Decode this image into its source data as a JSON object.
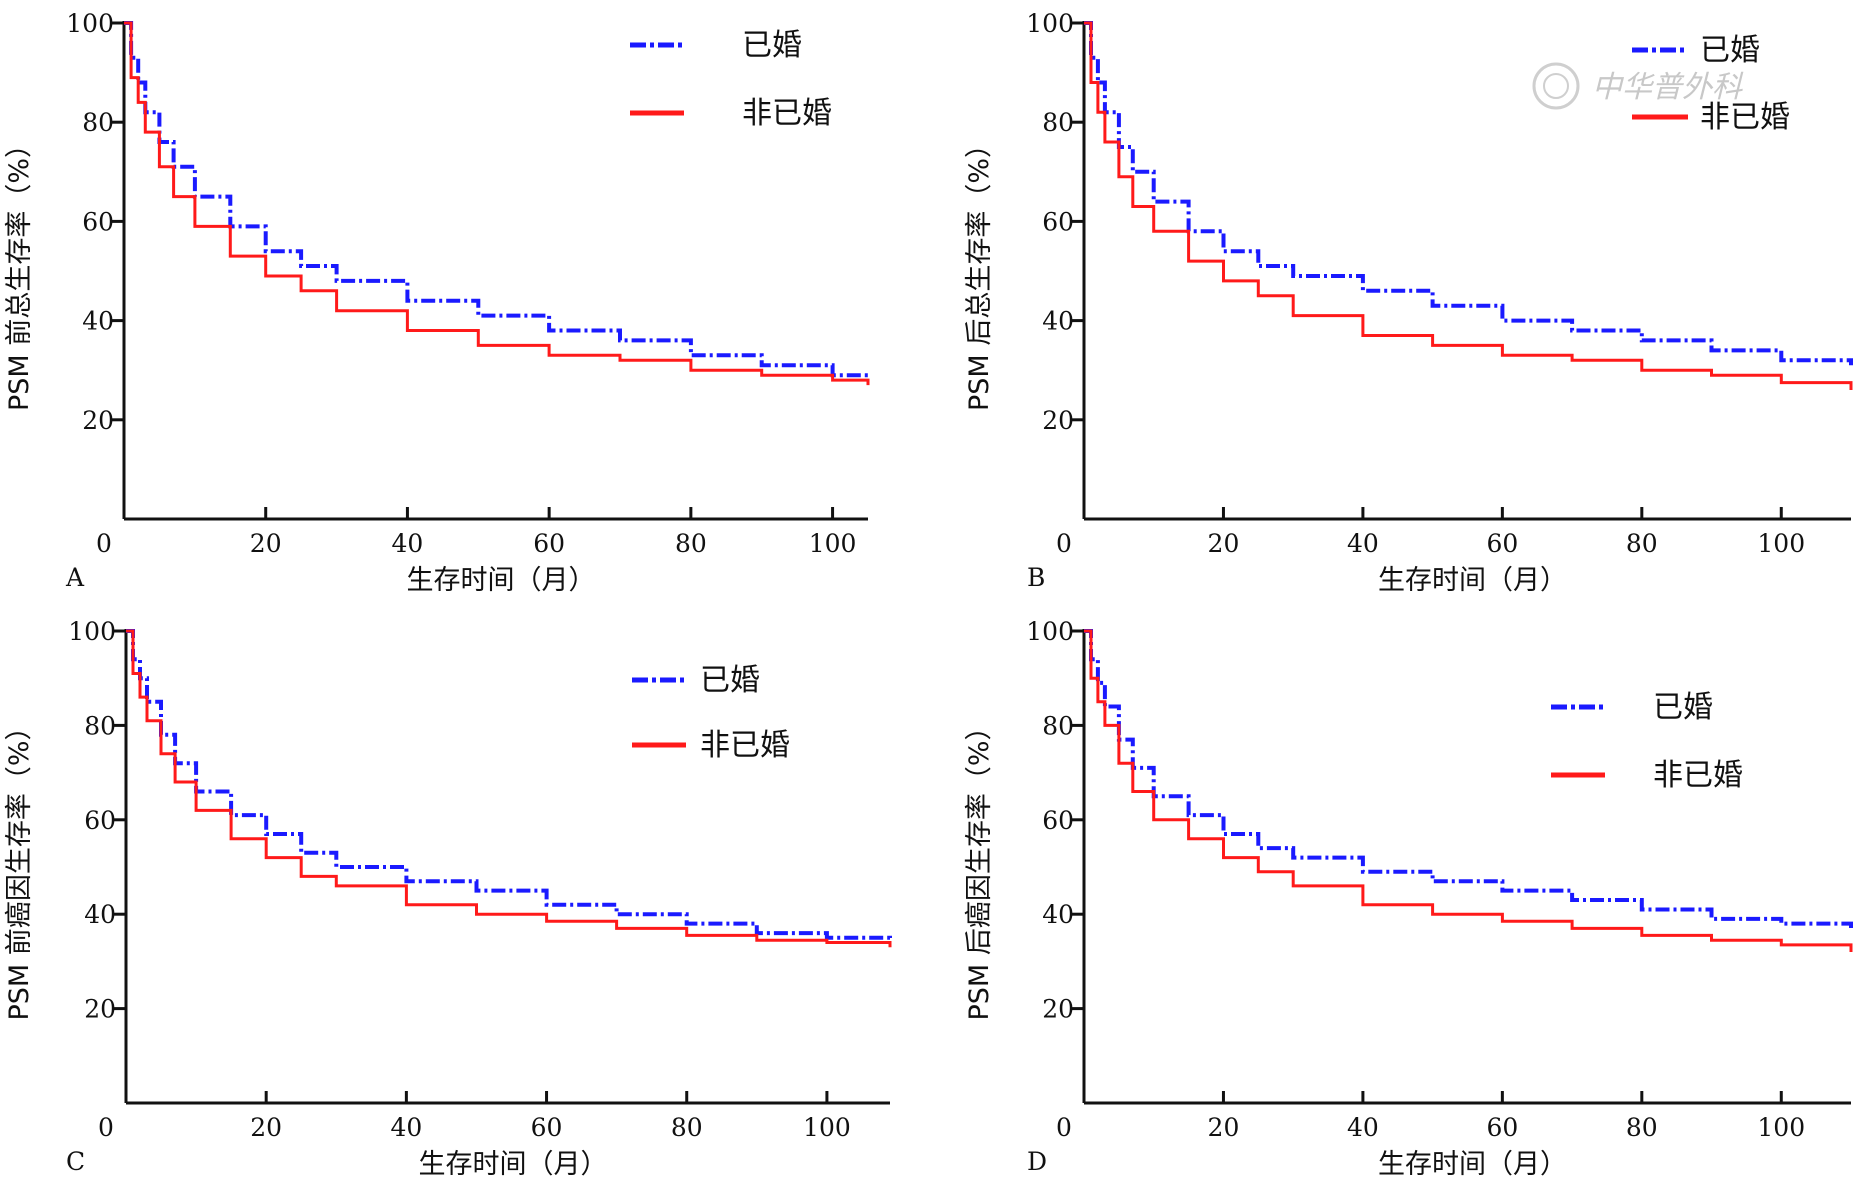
{
  "figure": {
    "watermark": "中华普外科"
  },
  "chart_data": [
    {
      "type": "line",
      "panel_label": "A",
      "xlabel": "生存时间（月）",
      "ylabel": "PSM 前总生存率（%）",
      "xlim": [
        0,
        105
      ],
      "ylim": [
        0,
        100
      ],
      "x_ticks": [
        0,
        20,
        40,
        60,
        80,
        100
      ],
      "y_ticks": [
        20,
        40,
        60,
        80,
        100
      ],
      "legend_position": "top-right",
      "series": [
        {
          "name": "已婚",
          "color": "#1a1aff",
          "style": "dash-dot",
          "points": [
            [
              0,
              100
            ],
            [
              1,
              93
            ],
            [
              2,
              88
            ],
            [
              3,
              82
            ],
            [
              5,
              76
            ],
            [
              7,
              71
            ],
            [
              10,
              65
            ],
            [
              15,
              59
            ],
            [
              20,
              54
            ],
            [
              25,
              51
            ],
            [
              30,
              48
            ],
            [
              40,
              44
            ],
            [
              50,
              41
            ],
            [
              60,
              38
            ],
            [
              70,
              36
            ],
            [
              80,
              33
            ],
            [
              90,
              31
            ],
            [
              100,
              29
            ],
            [
              105,
              28.5
            ]
          ]
        },
        {
          "name": "非已婚",
          "color": "#ff1a1a",
          "style": "solid",
          "points": [
            [
              0,
              100
            ],
            [
              1,
              89
            ],
            [
              2,
              84
            ],
            [
              3,
              78
            ],
            [
              5,
              71
            ],
            [
              7,
              65
            ],
            [
              10,
              59
            ],
            [
              15,
              53
            ],
            [
              20,
              49
            ],
            [
              25,
              46
            ],
            [
              30,
              42
            ],
            [
              40,
              38
            ],
            [
              50,
              35
            ],
            [
              60,
              33
            ],
            [
              70,
              32
            ],
            [
              80,
              30
            ],
            [
              90,
              29
            ],
            [
              100,
              28
            ],
            [
              105,
              27
            ]
          ]
        }
      ]
    },
    {
      "type": "line",
      "panel_label": "B",
      "xlabel": "生存时间（月）",
      "ylabel": "PSM 后总生存率（%）",
      "xlim": [
        0,
        110
      ],
      "ylim": [
        0,
        100
      ],
      "x_ticks": [
        0,
        20,
        40,
        60,
        80,
        100
      ],
      "y_ticks": [
        20,
        40,
        60,
        80,
        100
      ],
      "legend_position": "top-right",
      "series": [
        {
          "name": "已婚",
          "color": "#1a1aff",
          "style": "dash-dot",
          "points": [
            [
              0,
              100
            ],
            [
              1,
              93
            ],
            [
              2,
              88
            ],
            [
              3,
              82
            ],
            [
              5,
              75
            ],
            [
              7,
              70
            ],
            [
              10,
              64
            ],
            [
              15,
              58
            ],
            [
              20,
              54
            ],
            [
              25,
              51
            ],
            [
              30,
              49
            ],
            [
              40,
              46
            ],
            [
              50,
              43
            ],
            [
              60,
              40
            ],
            [
              70,
              38
            ],
            [
              80,
              36
            ],
            [
              90,
              34
            ],
            [
              100,
              32
            ],
            [
              110,
              31
            ]
          ]
        },
        {
          "name": "非已婚",
          "color": "#ff1a1a",
          "style": "solid",
          "points": [
            [
              0,
              100
            ],
            [
              1,
              88
            ],
            [
              2,
              82
            ],
            [
              3,
              76
            ],
            [
              5,
              69
            ],
            [
              7,
              63
            ],
            [
              10,
              58
            ],
            [
              15,
              52
            ],
            [
              20,
              48
            ],
            [
              25,
              45
            ],
            [
              30,
              41
            ],
            [
              40,
              37
            ],
            [
              50,
              35
            ],
            [
              60,
              33
            ],
            [
              70,
              32
            ],
            [
              80,
              30
            ],
            [
              90,
              29
            ],
            [
              100,
              27.5
            ],
            [
              110,
              26
            ]
          ]
        }
      ]
    },
    {
      "type": "line",
      "panel_label": "C",
      "xlabel": "生存时间（月）",
      "ylabel": "PSM 前癌因生存率（%）",
      "xlim": [
        0,
        109
      ],
      "ylim": [
        0,
        100
      ],
      "x_ticks": [
        0,
        20,
        40,
        60,
        80,
        100
      ],
      "y_ticks": [
        20,
        40,
        60,
        80,
        100
      ],
      "legend_position": "top-right",
      "series": [
        {
          "name": "已婚",
          "color": "#1a1aff",
          "style": "dash-dot",
          "points": [
            [
              0,
              100
            ],
            [
              1,
              94
            ],
            [
              2,
              90
            ],
            [
              3,
              85
            ],
            [
              5,
              78
            ],
            [
              7,
              72
            ],
            [
              10,
              66
            ],
            [
              15,
              61
            ],
            [
              20,
              57
            ],
            [
              25,
              53
            ],
            [
              30,
              50
            ],
            [
              40,
              47
            ],
            [
              50,
              45
            ],
            [
              60,
              42
            ],
            [
              70,
              40
            ],
            [
              80,
              38
            ],
            [
              90,
              36
            ],
            [
              100,
              35
            ],
            [
              109,
              34.5
            ]
          ]
        },
        {
          "name": "非已婚",
          "color": "#ff1a1a",
          "style": "solid",
          "points": [
            [
              0,
              100
            ],
            [
              1,
              91
            ],
            [
              2,
              86
            ],
            [
              3,
              81
            ],
            [
              5,
              74
            ],
            [
              7,
              68
            ],
            [
              10,
              62
            ],
            [
              15,
              56
            ],
            [
              20,
              52
            ],
            [
              25,
              48
            ],
            [
              30,
              46
            ],
            [
              40,
              42
            ],
            [
              50,
              40
            ],
            [
              60,
              38.5
            ],
            [
              70,
              37
            ],
            [
              80,
              35.5
            ],
            [
              90,
              34.5
            ],
            [
              100,
              34
            ],
            [
              109,
              33
            ]
          ]
        }
      ]
    },
    {
      "type": "line",
      "panel_label": "D",
      "xlabel": "生存时间（月）",
      "ylabel": "PSM 后癌因生存率（%）",
      "xlim": [
        0,
        110
      ],
      "ylim": [
        0,
        100
      ],
      "x_ticks": [
        0,
        20,
        40,
        60,
        80,
        100
      ],
      "y_ticks": [
        20,
        40,
        60,
        80,
        100
      ],
      "legend_position": "top-right",
      "series": [
        {
          "name": "已婚",
          "color": "#1a1aff",
          "style": "dash-dot",
          "points": [
            [
              0,
              100
            ],
            [
              1,
              94
            ],
            [
              2,
              89
            ],
            [
              3,
              84
            ],
            [
              5,
              77
            ],
            [
              7,
              71
            ],
            [
              10,
              65
            ],
            [
              15,
              61
            ],
            [
              20,
              57
            ],
            [
              25,
              54
            ],
            [
              30,
              52
            ],
            [
              40,
              49
            ],
            [
              50,
              47
            ],
            [
              60,
              45
            ],
            [
              70,
              43
            ],
            [
              80,
              41
            ],
            [
              90,
              39
            ],
            [
              100,
              38
            ],
            [
              110,
              37
            ]
          ]
        },
        {
          "name": "非已婚",
          "color": "#ff1a1a",
          "style": "solid",
          "points": [
            [
              0,
              100
            ],
            [
              1,
              90
            ],
            [
              2,
              85
            ],
            [
              3,
              80
            ],
            [
              5,
              72
            ],
            [
              7,
              66
            ],
            [
              10,
              60
            ],
            [
              15,
              56
            ],
            [
              20,
              52
            ],
            [
              25,
              49
            ],
            [
              30,
              46
            ],
            [
              40,
              42
            ],
            [
              50,
              40
            ],
            [
              60,
              38.5
            ],
            [
              70,
              37
            ],
            [
              80,
              35.5
            ],
            [
              90,
              34.5
            ],
            [
              100,
              33.5
            ],
            [
              110,
              32
            ]
          ]
        }
      ]
    }
  ]
}
